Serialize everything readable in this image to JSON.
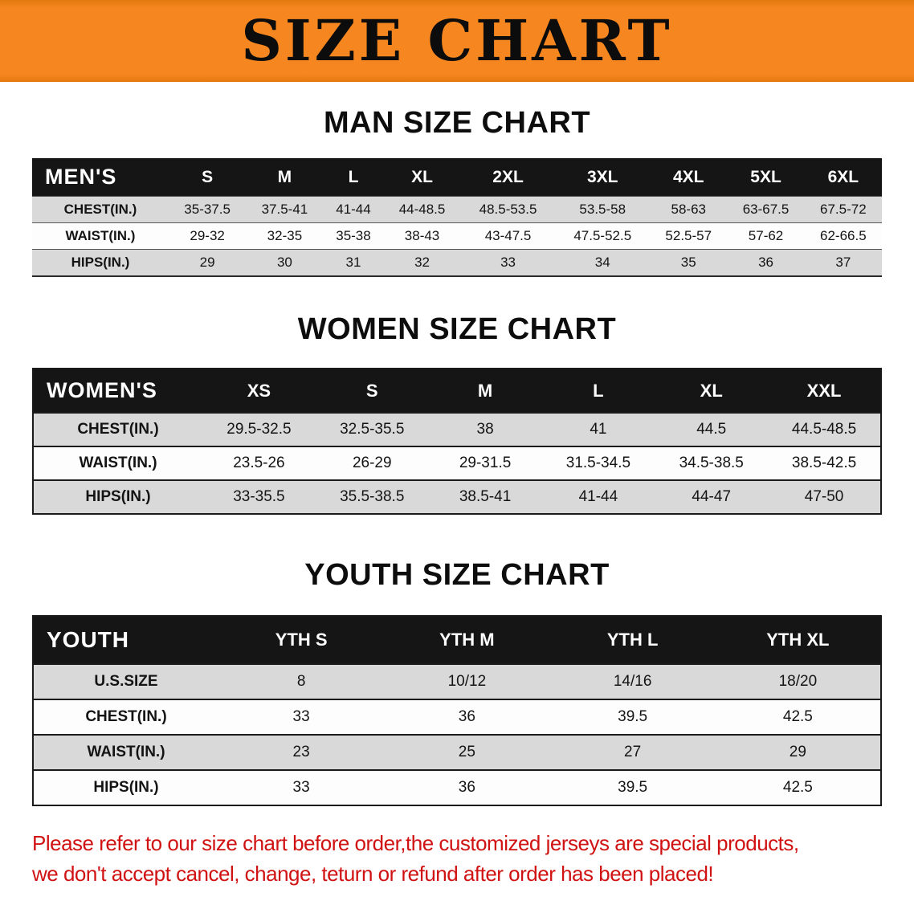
{
  "colors": {
    "banner": "#f6861f",
    "banner-edge": "#e2790e",
    "table-header": "#151515",
    "stripe": "#d9d9d9",
    "warning": "#d01212"
  },
  "banner": {
    "title": "SIZE CHART"
  },
  "sections": [
    {
      "heading": "MAN SIZE CHART",
      "table": {
        "label": "MEN'S",
        "columns": [
          "S",
          "M",
          "L",
          "XL",
          "2XL",
          "3XL",
          "4XL",
          "5XL",
          "6XL"
        ],
        "rows": [
          {
            "label": "CHEST(IN.)",
            "values": [
              "35-37.5",
              "37.5-41",
              "41-44",
              "44-48.5",
              "48.5-53.5",
              "53.5-58",
              "58-63",
              "63-67.5",
              "67.5-72"
            ]
          },
          {
            "label": "WAIST(IN.)",
            "values": [
              "29-32",
              "32-35",
              "35-38",
              "38-43",
              "43-47.5",
              "47.5-52.5",
              "52.5-57",
              "57-62",
              "62-66.5"
            ]
          },
          {
            "label": "HIPS(IN.)",
            "values": [
              "29",
              "30",
              "31",
              "32",
              "33",
              "34",
              "35",
              "36",
              "37"
            ]
          }
        ]
      }
    },
    {
      "heading": "WOMEN SIZE CHART",
      "table": {
        "label": "WOMEN'S",
        "columns": [
          "XS",
          "S",
          "M",
          "L",
          "XL",
          "XXL"
        ],
        "rows": [
          {
            "label": "CHEST(IN.)",
            "values": [
              "29.5-32.5",
              "32.5-35.5",
              "38",
              "41",
              "44.5",
              "44.5-48.5"
            ]
          },
          {
            "label": "WAIST(IN.)",
            "values": [
              "23.5-26",
              "26-29",
              "29-31.5",
              "31.5-34.5",
              "34.5-38.5",
              "38.5-42.5"
            ]
          },
          {
            "label": "HIPS(IN.)",
            "values": [
              "33-35.5",
              "35.5-38.5",
              "38.5-41",
              "41-44",
              "44-47",
              "47-50"
            ]
          }
        ]
      }
    },
    {
      "heading": "YOUTH SIZE CHART",
      "table": {
        "label": "YOUTH",
        "columns": [
          "YTH S",
          "YTH M",
          "YTH L",
          "YTH XL"
        ],
        "rows": [
          {
            "label": "U.S.SIZE",
            "values": [
              "8",
              "10/12",
              "14/16",
              "18/20"
            ]
          },
          {
            "label": "CHEST(IN.)",
            "values": [
              "33",
              "36",
              "39.5",
              "42.5"
            ]
          },
          {
            "label": "WAIST(IN.)",
            "values": [
              "23",
              "25",
              "27",
              "29"
            ]
          },
          {
            "label": "HIPS(IN.)",
            "values": [
              "33",
              "36",
              "39.5",
              "42.5"
            ]
          }
        ]
      }
    }
  ],
  "disclaimer": {
    "line1": "Please refer to our size chart before order,the customized jerseys are special products,",
    "line2": "we don't accept cancel, change, teturn or refund after order has been placed!"
  }
}
